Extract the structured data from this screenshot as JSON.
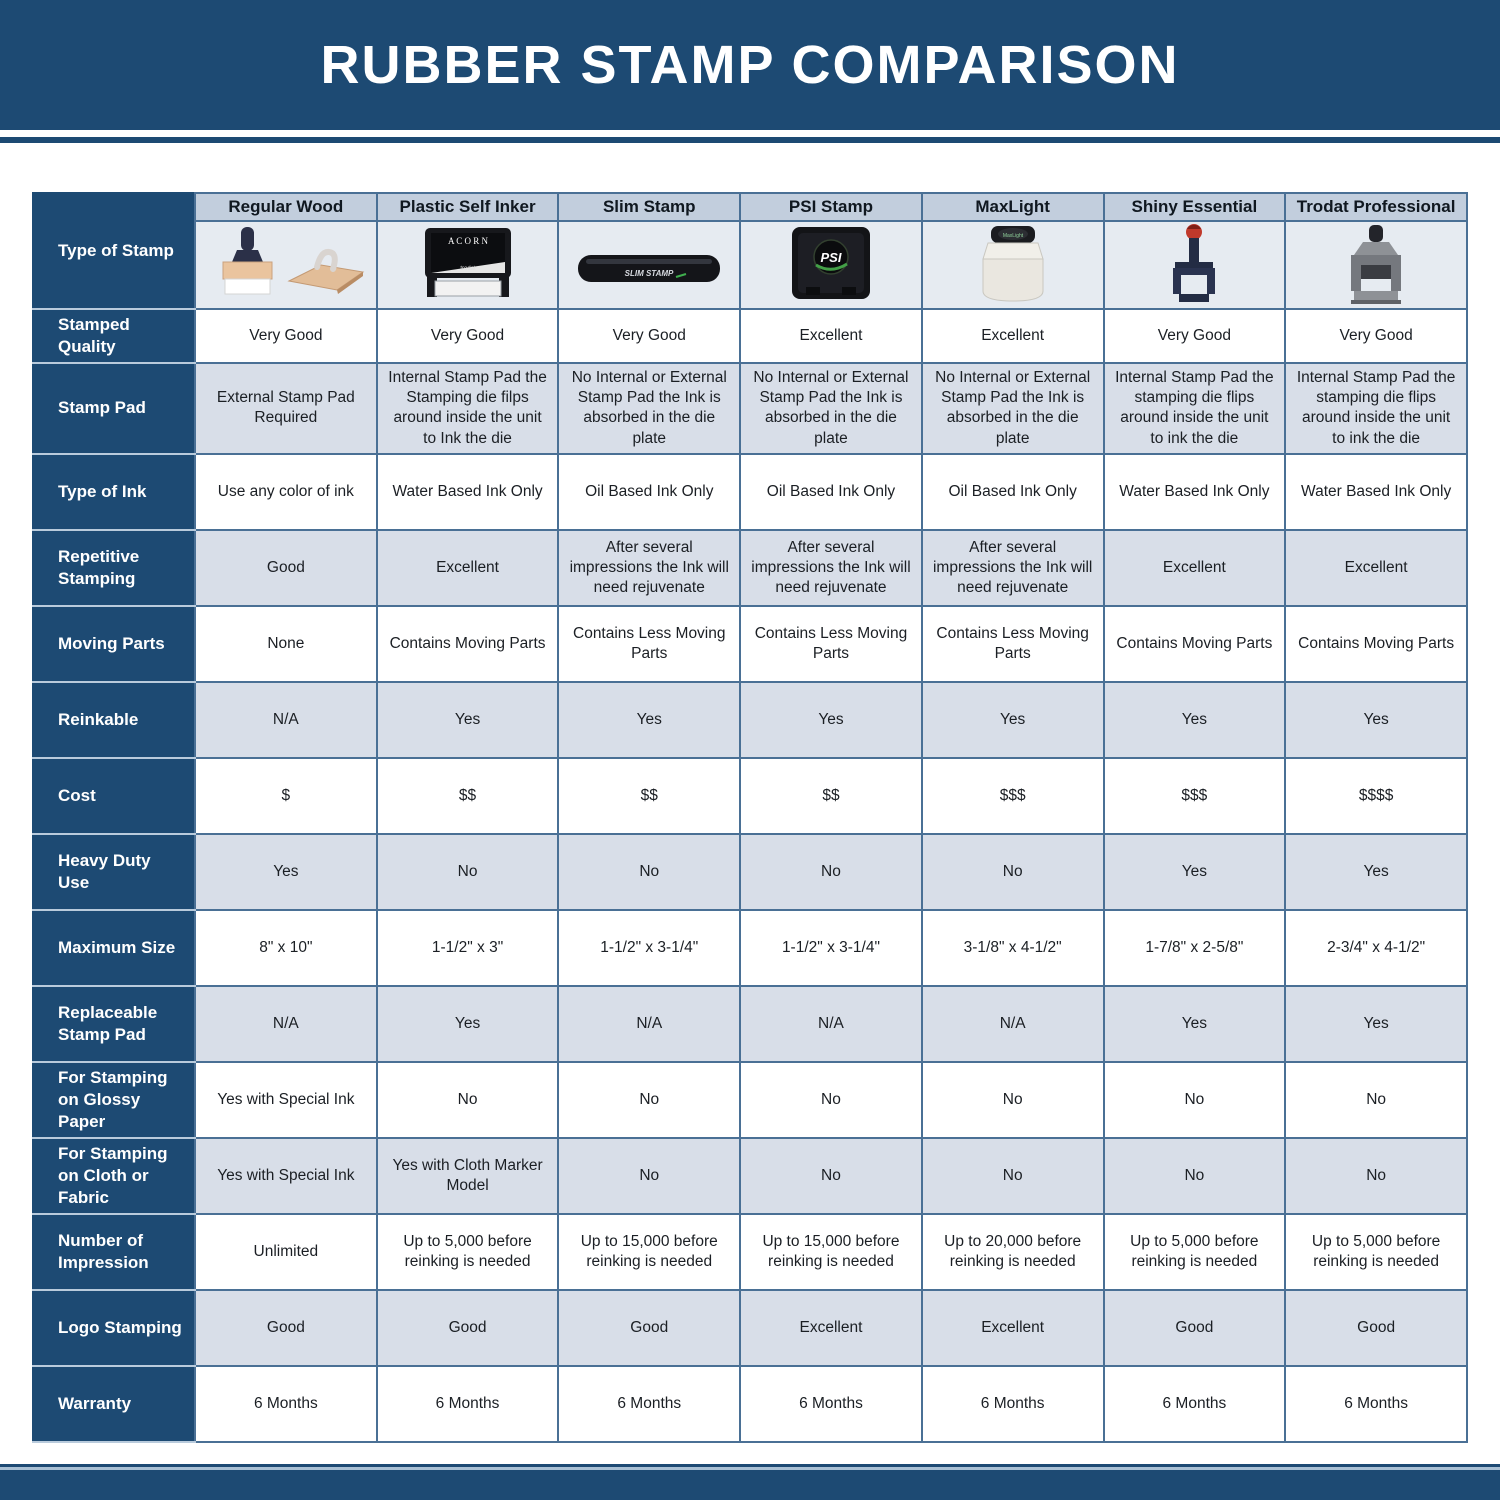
{
  "header": {
    "title": "RUBBER STAMP COMPARISON"
  },
  "colors": {
    "banner_bg": "#1d4a73",
    "label_cell_bg": "#1d4a73",
    "column_header_bg": "#c2cedd",
    "image_row_bg": "#e6ebf1",
    "alt_row_bg": "#d8dee8",
    "white_row_bg": "#ffffff",
    "grid_border": "#4a7095",
    "cell_text": "#1b1f24",
    "label_text": "#ffffff"
  },
  "table": {
    "corner_label": "Type of Stamp",
    "columns": [
      {
        "label": "Regular Wood",
        "image": "regular-wood-stamp"
      },
      {
        "label": "Plastic Self Inker",
        "image": "plastic-self-inker-stamp"
      },
      {
        "label": "Slim Stamp",
        "image": "slim-stamp"
      },
      {
        "label": "PSI Stamp",
        "image": "psi-stamp"
      },
      {
        "label": "MaxLight",
        "image": "maxlight-stamp"
      },
      {
        "label": "Shiny Essential",
        "image": "shiny-essential-stamp"
      },
      {
        "label": "Trodat Professional",
        "image": "trodat-professional-stamp"
      }
    ],
    "rows": [
      {
        "label": "Stamped Quality",
        "values": [
          "Very Good",
          "Very Good",
          "Very Good",
          "Excellent",
          "Excellent",
          "Very Good",
          "Very Good"
        ]
      },
      {
        "label": "Stamp Pad",
        "values": [
          "External Stamp Pad Required",
          "Internal Stamp Pad the Stamping die filps around inside the unit to Ink the die",
          "No Internal or External Stamp Pad the Ink is absorbed in the die plate",
          "No Internal or External Stamp Pad the Ink is absorbed in the die plate",
          "No Internal or External Stamp Pad the Ink is absorbed in the die plate",
          "Internal Stamp Pad the stamping die flips around inside the unit to ink the die",
          "Internal Stamp Pad the stamping die flips around inside the unit to ink the die"
        ]
      },
      {
        "label": "Type of Ink",
        "values": [
          "Use any color of ink",
          "Water Based Ink Only",
          "Oil Based Ink Only",
          "Oil Based Ink Only",
          "Oil Based Ink Only",
          "Water Based Ink Only",
          "Water Based Ink Only"
        ]
      },
      {
        "label": "Repetitive Stamping",
        "values": [
          "Good",
          "Excellent",
          "After several impressions the Ink will need rejuvenate",
          "After several impressions the Ink will need rejuvenate",
          "After several impressions the Ink will need rejuvenate",
          "Excellent",
          "Excellent"
        ]
      },
      {
        "label": "Moving Parts",
        "values": [
          "None",
          "Contains Moving Parts",
          "Contains Less Moving Parts",
          "Contains Less Moving Parts",
          "Contains Less Moving Parts",
          "Contains Moving Parts",
          "Contains Moving Parts"
        ]
      },
      {
        "label": "Reinkable",
        "values": [
          "N/A",
          "Yes",
          "Yes",
          "Yes",
          "Yes",
          "Yes",
          "Yes"
        ]
      },
      {
        "label": "Cost",
        "values": [
          "$",
          "$$",
          "$$",
          "$$",
          "$$$",
          "$$$",
          "$$$$"
        ]
      },
      {
        "label": "Heavy Duty Use",
        "values": [
          "Yes",
          "No",
          "No",
          "No",
          "No",
          "Yes",
          "Yes"
        ]
      },
      {
        "label": "Maximum Size",
        "values": [
          "8\" x 10\"",
          "1-1/2\" x 3\"",
          "1-1/2\" x 3-1/4\"",
          "1-1/2\" x 3-1/4\"",
          "3-1/8\" x 4-1/2\"",
          "1-7/8\" x 2-5/8\"",
          "2-3/4\" x 4-1/2\""
        ]
      },
      {
        "label": "Replaceable Stamp Pad",
        "values": [
          "N/A",
          "Yes",
          "N/A",
          "N/A",
          "N/A",
          "Yes",
          "Yes"
        ]
      },
      {
        "label": "For Stamping on Glossy Paper",
        "values": [
          "Yes with Special Ink",
          "No",
          "No",
          "No",
          "No",
          "No",
          "No"
        ]
      },
      {
        "label": "For Stamping on Cloth or Fabric",
        "values": [
          "Yes with Special Ink",
          "Yes with Cloth Marker Model",
          "No",
          "No",
          "No",
          "No",
          "No"
        ]
      },
      {
        "label": "Number of Impression",
        "values": [
          "Unlimited",
          "Up to 5,000 before reinking is needed",
          "Up to 15,000 before reinking is needed",
          "Up to 15,000 before reinking is needed",
          "Up to 20,000 before reinking is needed",
          "Up to 5,000 before reinking is needed",
          "Up to 5,000 before reinking is needed"
        ]
      },
      {
        "label": "Logo Stamping",
        "values": [
          "Good",
          "Good",
          "Good",
          "Excellent",
          "Excellent",
          "Good",
          "Good"
        ]
      },
      {
        "label": "Warranty",
        "values": [
          "6 Months",
          "6 Months",
          "6 Months",
          "6 Months",
          "6 Months",
          "6 Months",
          "6 Months"
        ]
      }
    ]
  }
}
